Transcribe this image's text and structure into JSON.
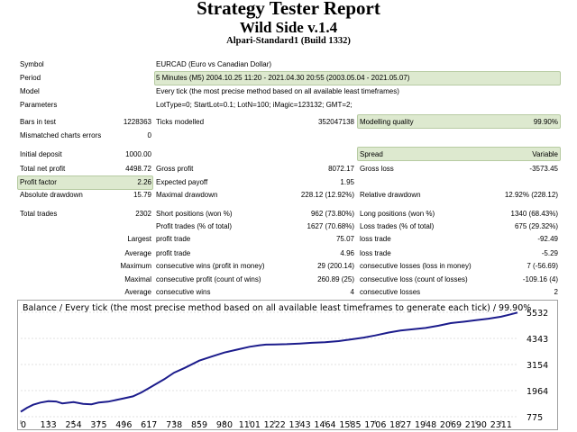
{
  "report": {
    "title": "Strategy Tester Report",
    "ea_name": "Wild Side v.1.4",
    "server": "Alpari-Standard1 (Build 1332)"
  },
  "colors": {
    "highlight_bg": "#dde9cf",
    "balance_line": "#1c1c8c",
    "chart_border": "#a0a0a0"
  },
  "settings": {
    "symbol_label": "Symbol",
    "symbol_value": "EURCAD (Euro vs Canadian Dollar)",
    "period_label": "Period",
    "period_value": "5 Minutes (M5) 2004.10.25 11:20 - 2021.04.30 20:55 (2003.05.04 - 2021.05.07)",
    "model_label": "Model",
    "model_value": "Every tick (the most precise method based on all available least timeframes)",
    "params_label": "Parameters",
    "params_value": "LotType=0; StartLot=0.1; LotN=100; iMagic=123132; GMT=2;"
  },
  "stats": {
    "bars_label": "Bars in test",
    "bars_value": "1228363",
    "ticks_label": "Ticks modelled",
    "ticks_value": "352047138",
    "quality_label": "Modelling quality",
    "quality_value": "99.90%",
    "mismatch_label": "Mismatched charts errors",
    "mismatch_value": "0",
    "deposit_label": "Initial deposit",
    "deposit_value": "1000.00",
    "spread_label": "Spread",
    "spread_value": "Variable",
    "netprofit_label": "Total net profit",
    "netprofit_value": "4498.72",
    "grossprofit_label": "Gross profit",
    "grossprofit_value": "8072.17",
    "grossloss_label": "Gross loss",
    "grossloss_value": "-3573.45",
    "pf_label": "Profit factor",
    "pf_value": "2.26",
    "payoff_label": "Expected payoff",
    "payoff_value": "1.95",
    "absdd_label": "Absolute drawdown",
    "absdd_value": "15.79",
    "maxdd_label": "Maximal drawdown",
    "maxdd_value": "228.12 (12.92%)",
    "reldd_label": "Relative drawdown",
    "reldd_value": "12.92% (228.12)",
    "trades_label": "Total trades",
    "trades_value": "2302",
    "short_label": "Short positions (won %)",
    "short_value": "962 (73.80%)",
    "long_label": "Long positions (won %)",
    "long_value": "1340 (68.43%)",
    "profit_trades_label": "Profit trades (% of total)",
    "profit_trades_value": "1627 (70.68%)",
    "loss_trades_label": "Loss trades (% of total)",
    "loss_trades_value": "675 (29.32%)",
    "largest_label": "Largest",
    "largest_profit_label": "profit trade",
    "largest_profit_value": "75.07",
    "largest_loss_label": "loss trade",
    "largest_loss_value": "-92.49",
    "average_label": "Average",
    "avg_profit_label": "profit trade",
    "avg_profit_value": "4.96",
    "avg_loss_label": "loss trade",
    "avg_loss_value": "-5.29",
    "maximum_label": "Maximum",
    "max_cw_label": "consecutive wins (profit in money)",
    "max_cw_value": "29 (200.14)",
    "max_cl_label": "consecutive losses (loss in money)",
    "max_cl_value": "7 (-56.69)",
    "maximal_label": "Maximal",
    "mxl_cp_label": "consecutive profit (count of wins)",
    "mxl_cp_value": "260.89 (25)",
    "mxl_cl_label": "consecutive loss (count of losses)",
    "mxl_cl_value": "-109.16 (4)",
    "average2_label": "Average",
    "avg_cw_label": "consecutive wins",
    "avg_cw_value": "4",
    "avg_cl_label": "consecutive losses",
    "avg_cl_value": "2"
  },
  "chart_data": {
    "type": "line",
    "title": "Balance / Every tick (the most precise method based on all available least timeframes to generate each tick) / 99.90%",
    "x_ticks": [
      0,
      133,
      254,
      375,
      496,
      617,
      738,
      859,
      980,
      1101,
      1222,
      1343,
      1464,
      1585,
      1706,
      1827,
      1948,
      2069,
      2190,
      2311
    ],
    "y_ticks": [
      775,
      1964,
      3154,
      4343,
      5532
    ],
    "xlim": [
      0,
      2390
    ],
    "ylim": [
      775,
      5532
    ],
    "series": [
      {
        "x": [
          0,
          30,
          60,
          95,
          133,
          170,
          200,
          254,
          300,
          340,
          375,
          420,
          470,
          496,
          540,
          580,
          617,
          650,
          690,
          738,
          790,
          859,
          920,
          980,
          1040,
          1101,
          1150,
          1180,
          1222,
          1280,
          1343,
          1400,
          1464,
          1530,
          1585,
          1650,
          1706,
          1770,
          1827,
          1890,
          1948,
          2010,
          2069,
          2130,
          2190,
          2250,
          2311,
          2350,
          2390
        ],
        "values": [
          1000,
          1180,
          1320,
          1420,
          1480,
          1470,
          1380,
          1440,
          1360,
          1340,
          1420,
          1460,
          1560,
          1610,
          1700,
          1880,
          2080,
          2260,
          2480,
          2780,
          3000,
          3330,
          3520,
          3700,
          3830,
          3960,
          4030,
          4060,
          4070,
          4080,
          4110,
          4140,
          4170,
          4220,
          4290,
          4380,
          4480,
          4610,
          4700,
          4760,
          4820,
          4920,
          5040,
          5100,
          5170,
          5240,
          5330,
          5420,
          5520
        ]
      }
    ]
  }
}
